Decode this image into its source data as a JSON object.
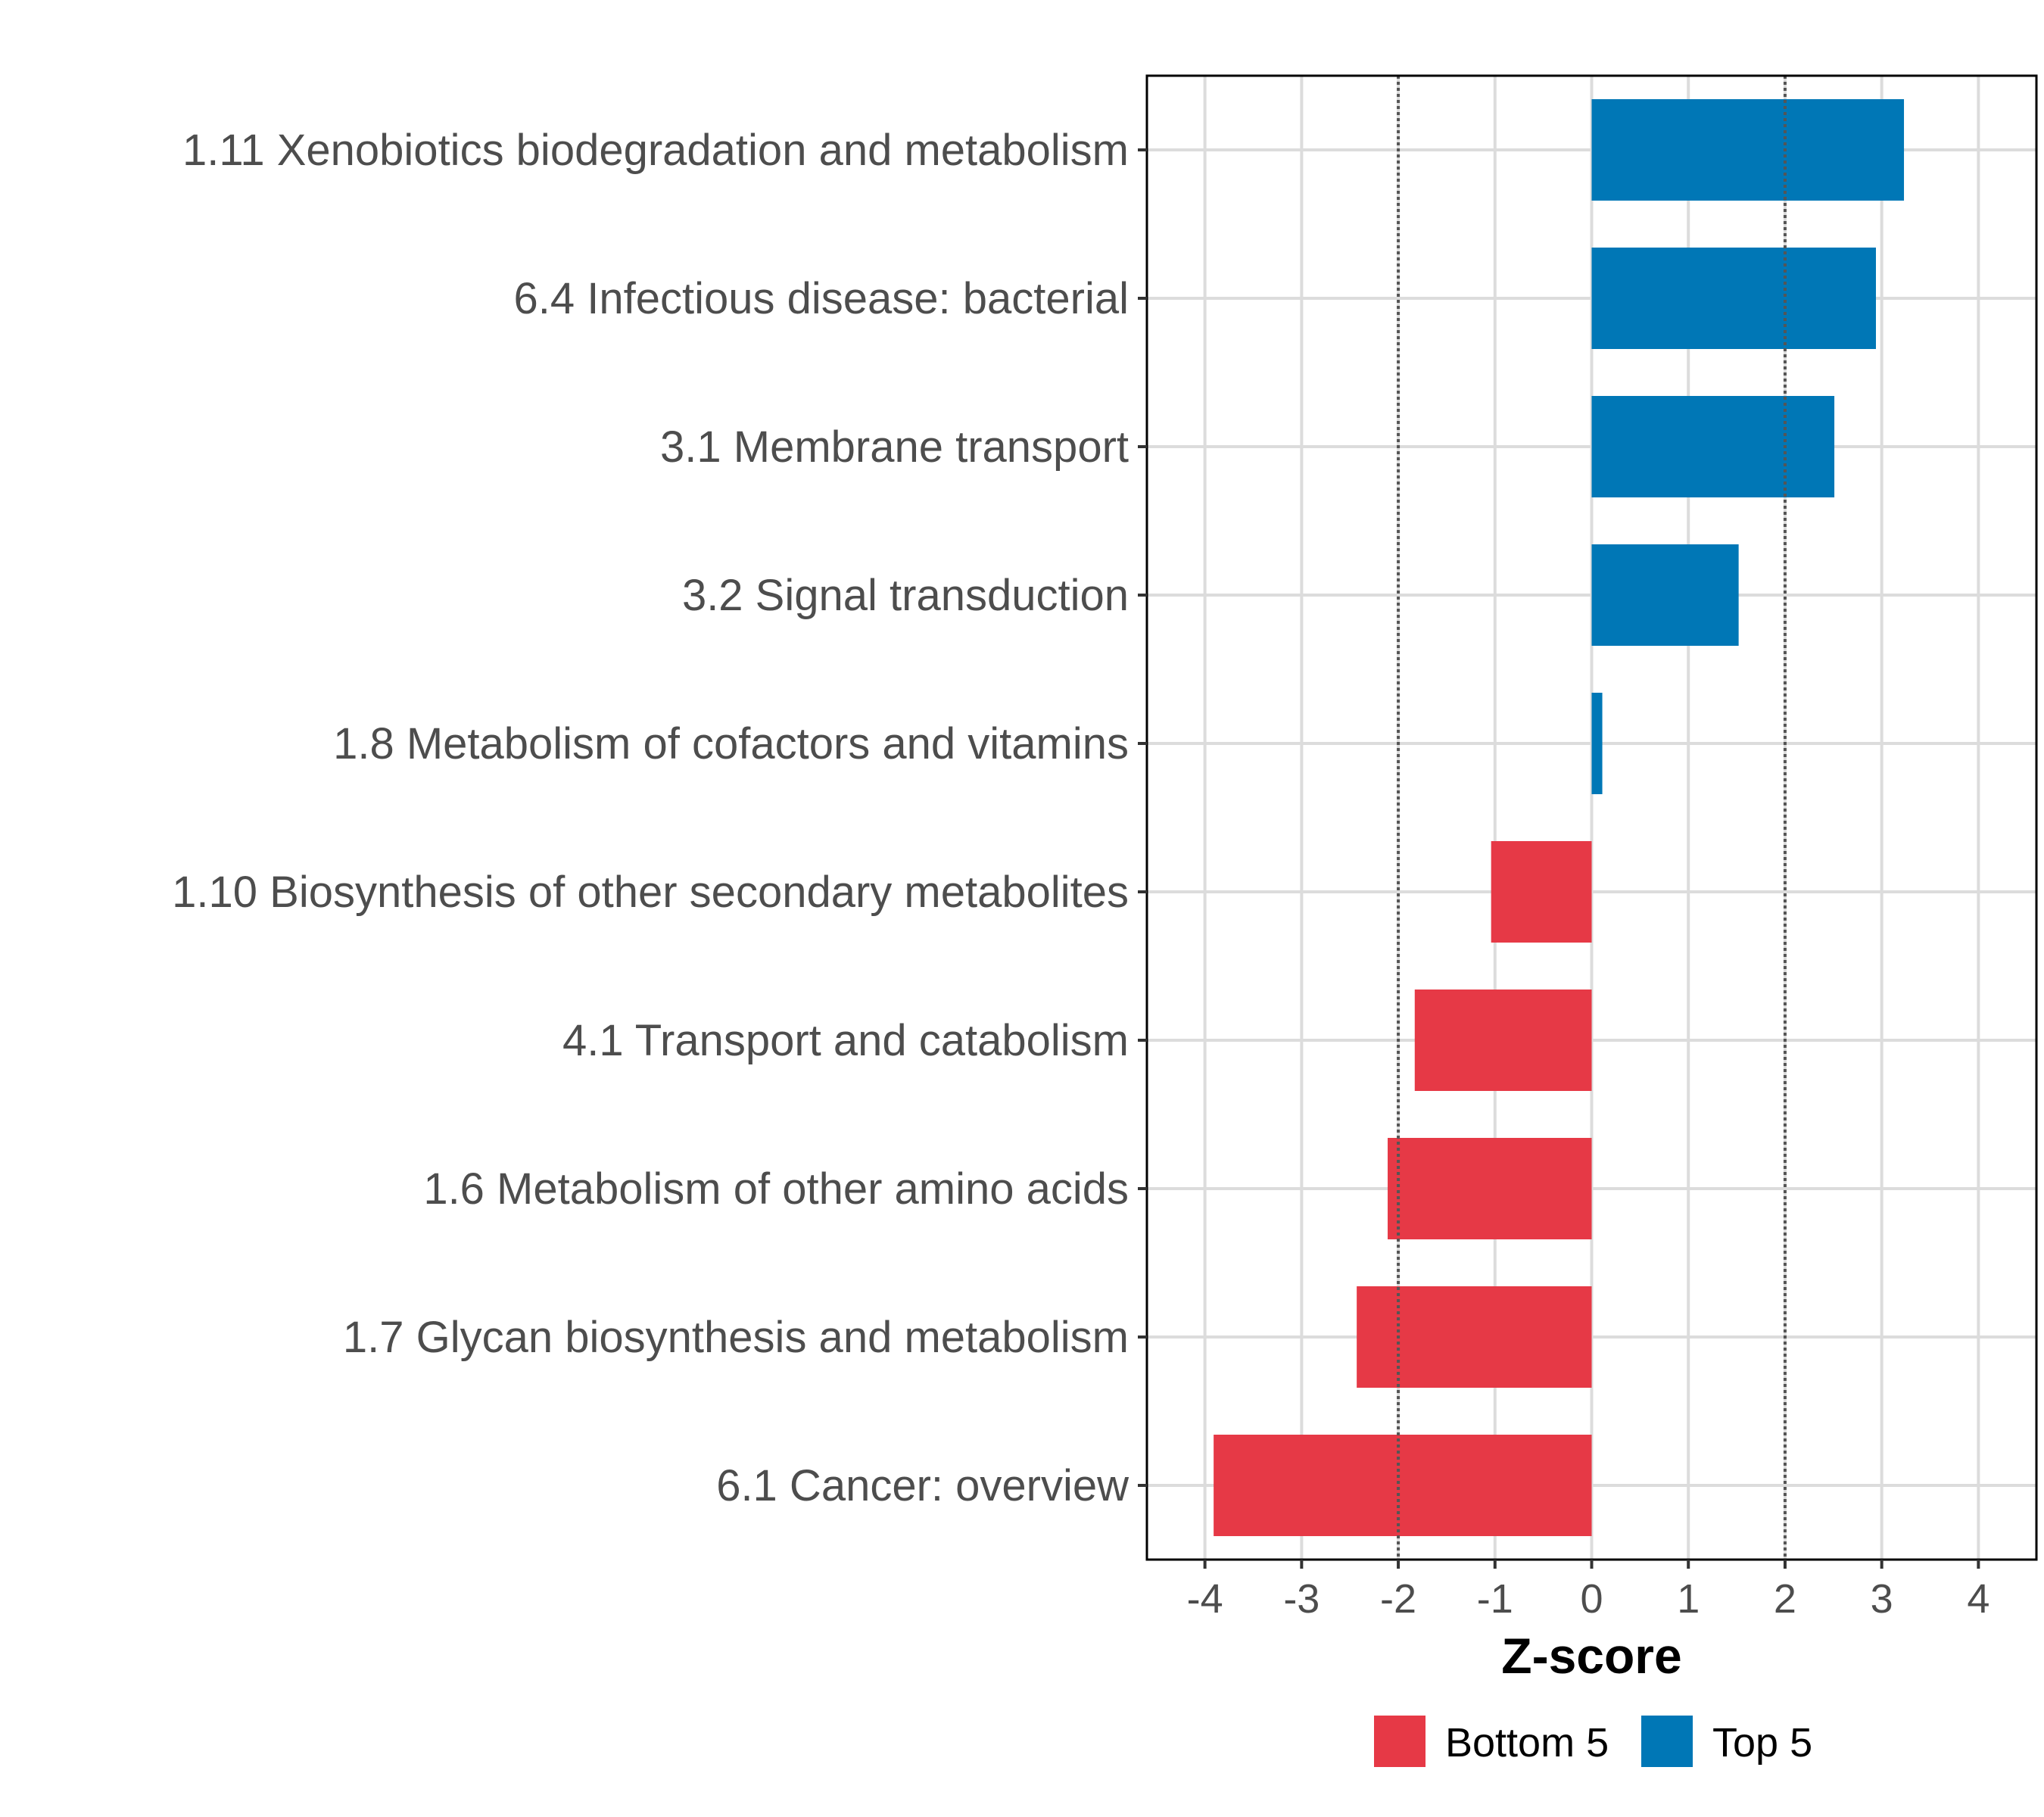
{
  "chart_data": {
    "type": "bar",
    "orientation": "horizontal",
    "categories": [
      "1.11 Xenobiotics biodegradation and metabolism",
      "6.4 Infectious disease: bacterial",
      "3.1 Membrane transport",
      "3.2 Signal transduction",
      "1.8 Metabolism of cofactors and vitamins",
      "1.10 Biosynthesis of other secondary metabolites",
      "4.1 Transport and catabolism",
      "1.6 Metabolism of other amino acids",
      "1.7 Glycan biosynthesis and metabolism",
      "6.1 Cancer: overview"
    ],
    "values": [
      3.23,
      2.94,
      2.51,
      1.52,
      0.11,
      -1.04,
      -1.83,
      -2.11,
      -2.43,
      -3.91
    ],
    "groups": [
      "Top 5",
      "Top 5",
      "Top 5",
      "Top 5",
      "Top 5",
      "Bottom 5",
      "Bottom 5",
      "Bottom 5",
      "Bottom 5",
      "Bottom 5"
    ],
    "xlabel": "Z-score",
    "ylabel": "",
    "xlim": [
      -4.6,
      4.6
    ],
    "xticks": [
      -4,
      -3,
      -2,
      -1,
      0,
      1,
      2,
      3,
      4
    ],
    "xtick_labels": [
      "-4",
      "-3",
      "-2",
      "-1",
      "0",
      "1",
      "2",
      "3",
      "4"
    ],
    "reference_lines": [
      -2,
      2
    ],
    "grid": true,
    "legend": {
      "position": "bottom",
      "entries": [
        {
          "label": "Bottom 5",
          "color": "#e63946"
        },
        {
          "label": "Top 5",
          "color": "#0077b6"
        }
      ]
    }
  },
  "colors": {
    "top": "#0077b6",
    "bottom": "#e63946",
    "grid": "#dcdcdc",
    "refline": "#555555"
  }
}
